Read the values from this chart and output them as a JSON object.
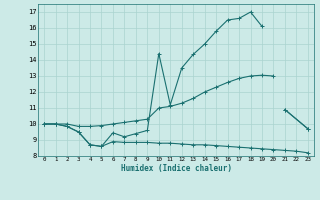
{
  "bg_color": "#cceae7",
  "line_color": "#1a7070",
  "grid_color": "#aad4d0",
  "xlabel": "Humidex (Indice chaleur)",
  "ylim": [
    8,
    17.5
  ],
  "xlim": [
    -0.5,
    23.5
  ],
  "yticks": [
    8,
    9,
    10,
    11,
    12,
    13,
    14,
    15,
    16,
    17
  ],
  "xticks": [
    0,
    1,
    2,
    3,
    4,
    5,
    6,
    7,
    8,
    9,
    10,
    11,
    12,
    13,
    14,
    15,
    16,
    17,
    18,
    19,
    20,
    21,
    22,
    23
  ],
  "line1_x": [
    0,
    1,
    2,
    3,
    4,
    5,
    6,
    7,
    8,
    9,
    10,
    11,
    12,
    13,
    14,
    15,
    16,
    17,
    18,
    19,
    20,
    21,
    23
  ],
  "line1_y": [
    10.0,
    10.0,
    9.85,
    9.5,
    8.7,
    8.6,
    9.45,
    9.2,
    9.4,
    9.6,
    14.4,
    11.2,
    13.5,
    14.35,
    15.0,
    15.8,
    16.5,
    16.6,
    17.0,
    16.1,
    10.9,
    10.9,
    9.7
  ],
  "line2_x": [
    0,
    1,
    2,
    3,
    4,
    5,
    6,
    7,
    8,
    9,
    10,
    11,
    12,
    13,
    14,
    15,
    16,
    17,
    18,
    19,
    20,
    21,
    23
  ],
  "line2_y": [
    10.0,
    10.0,
    10.0,
    9.85,
    9.85,
    9.9,
    10.0,
    10.1,
    10.2,
    10.3,
    11.0,
    11.1,
    11.3,
    11.6,
    12.0,
    12.3,
    12.6,
    12.85,
    13.0,
    13.05,
    13.0,
    10.9,
    9.7
  ],
  "line3_x": [
    0,
    1,
    2,
    3,
    4,
    5,
    6,
    7,
    8,
    9,
    10,
    11,
    12,
    13,
    14,
    15,
    16,
    17,
    18,
    19,
    20,
    21,
    22,
    23
  ],
  "line3_y": [
    10.0,
    10.0,
    9.85,
    9.5,
    8.7,
    8.6,
    8.9,
    8.85,
    8.85,
    8.85,
    8.8,
    8.8,
    8.75,
    8.7,
    8.7,
    8.65,
    8.6,
    8.55,
    8.5,
    8.45,
    8.4,
    8.35,
    8.3,
    8.2
  ],
  "line1_gaps": [
    [
      0,
      20
    ],
    [
      20,
      22
    ]
  ],
  "line2_gaps": [
    [
      0,
      21
    ],
    [
      21,
      22
    ]
  ]
}
